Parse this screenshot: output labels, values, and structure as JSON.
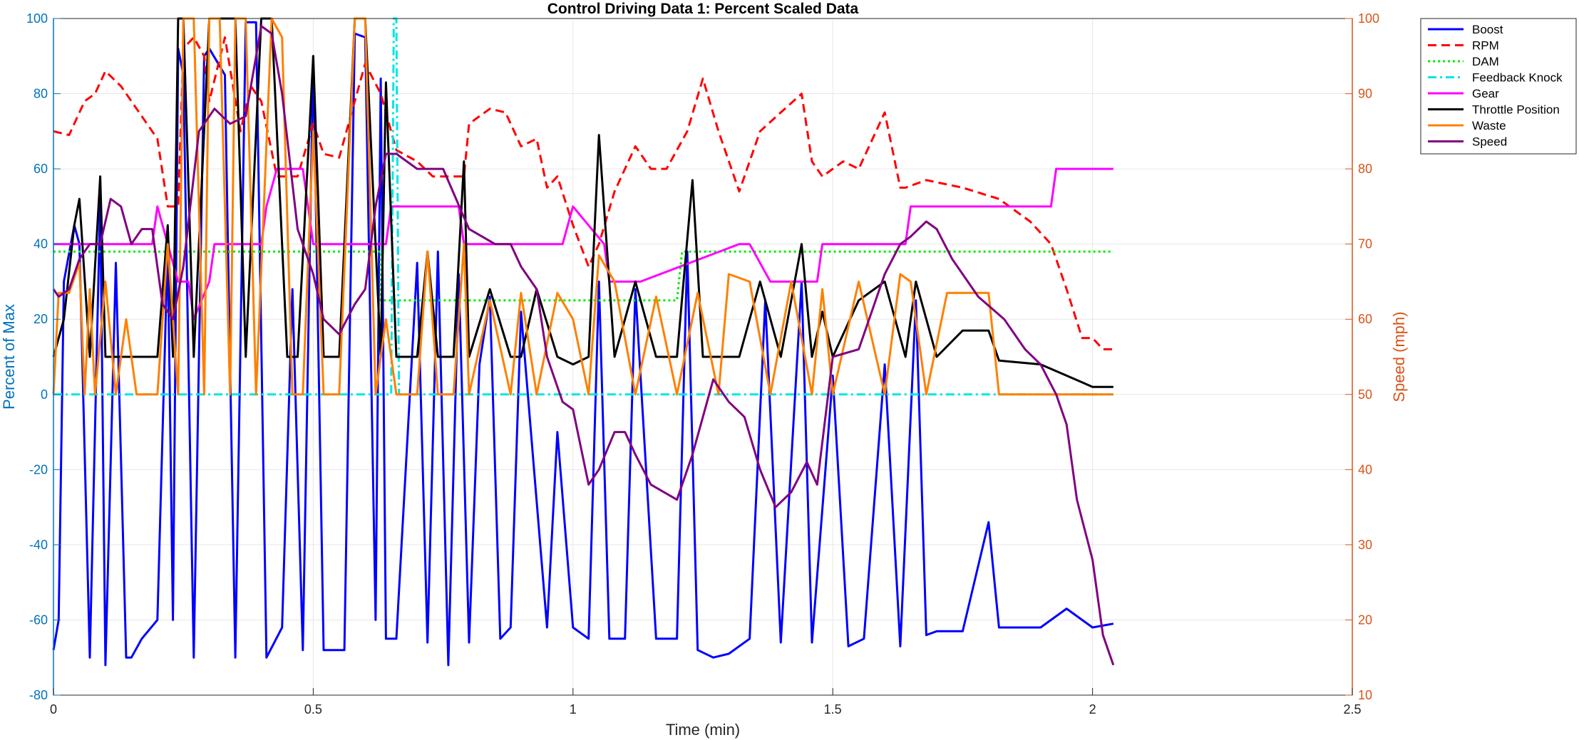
{
  "chart_data": {
    "type": "line",
    "title": "Control Driving Data 1: Percent Scaled Data",
    "xlabel": "Time (min)",
    "ylabel_left": "Percent of Max",
    "ylabel_right": "Speed (mph)",
    "xlim": [
      0,
      2.5
    ],
    "ylim_left": [
      -80,
      100
    ],
    "ylim_right": [
      10,
      100
    ],
    "x_ticks": [
      "0",
      "0.5",
      "1",
      "1.5",
      "2",
      "2.5"
    ],
    "y_ticks_left": [
      "-80",
      "-60",
      "-40",
      "-20",
      "0",
      "20",
      "40",
      "60",
      "80",
      "100"
    ],
    "y_ticks_right": [
      "10",
      "20",
      "30",
      "40",
      "50",
      "60",
      "70",
      "80",
      "90",
      "100"
    ],
    "grid": true,
    "legend_position": "outside-top-right",
    "series": [
      {
        "name": "Boost",
        "axis": "left",
        "color": "#0000FF",
        "style": "solid",
        "x": [
          0,
          0.01,
          0.02,
          0.04,
          0.05,
          0.07,
          0.09,
          0.1,
          0.12,
          0.14,
          0.15,
          0.17,
          0.2,
          0.22,
          0.23,
          0.24,
          0.25,
          0.27,
          0.29,
          0.3,
          0.33,
          0.35,
          0.37,
          0.39,
          0.41,
          0.44,
          0.46,
          0.48,
          0.5,
          0.52,
          0.56,
          0.58,
          0.6,
          0.62,
          0.63,
          0.64,
          0.66,
          0.7,
          0.72,
          0.74,
          0.76,
          0.78,
          0.8,
          0.82,
          0.84,
          0.86,
          0.88,
          0.9,
          0.95,
          0.97,
          1.0,
          1.03,
          1.05,
          1.07,
          1.1,
          1.12,
          1.16,
          1.2,
          1.22,
          1.24,
          1.27,
          1.3,
          1.34,
          1.37,
          1.4,
          1.44,
          1.46,
          1.5,
          1.53,
          1.56,
          1.6,
          1.63,
          1.66,
          1.68,
          1.7,
          1.75,
          1.8,
          1.82,
          1.85,
          1.9,
          1.95,
          2.0,
          2.04
        ],
        "y": [
          -68,
          -60,
          30,
          45,
          40,
          -70,
          52,
          -72,
          35,
          -70,
          -70,
          -65,
          -60,
          40,
          -60,
          92,
          85,
          -70,
          90,
          92,
          85,
          -70,
          99,
          99,
          -70,
          -62,
          28,
          -68,
          90,
          -68,
          -68,
          96,
          95,
          -60,
          84,
          -65,
          -65,
          35,
          -66,
          38,
          -72,
          32,
          -66,
          8,
          26,
          -65,
          -62,
          22,
          -62,
          -10,
          -62,
          -65,
          30,
          -65,
          -65,
          28,
          -65,
          -65,
          38,
          -68,
          -70,
          -69,
          -65,
          25,
          -66,
          30,
          -66,
          5,
          -67,
          -65,
          8,
          -67,
          25,
          -64,
          -63,
          -63,
          -34,
          -62,
          -62,
          -62,
          -57,
          -62,
          -61
        ]
      },
      {
        "name": "RPM",
        "axis": "left",
        "color": "#FF0000",
        "style": "dashed",
        "x": [
          0,
          0.03,
          0.06,
          0.08,
          0.1,
          0.13,
          0.15,
          0.2,
          0.22,
          0.24,
          0.25,
          0.27,
          0.29,
          0.3,
          0.33,
          0.36,
          0.38,
          0.4,
          0.43,
          0.47,
          0.5,
          0.52,
          0.55,
          0.58,
          0.6,
          0.63,
          0.66,
          0.7,
          0.73,
          0.76,
          0.79,
          0.8,
          0.84,
          0.87,
          0.9,
          0.93,
          0.95,
          0.97,
          1.0,
          1.03,
          1.05,
          1.08,
          1.12,
          1.15,
          1.18,
          1.22,
          1.25,
          1.28,
          1.32,
          1.36,
          1.4,
          1.44,
          1.46,
          1.48,
          1.52,
          1.55,
          1.6,
          1.63,
          1.64,
          1.68,
          1.75,
          1.82,
          1.88,
          1.92,
          1.95,
          1.98,
          2.0,
          2.02,
          2.04
        ],
        "y": [
          70,
          69,
          78,
          80,
          86,
          82,
          78,
          68,
          50,
          50,
          92,
          95,
          90,
          78,
          95,
          70,
          82,
          78,
          58,
          58,
          72,
          64,
          63,
          78,
          88,
          80,
          65,
          62,
          58,
          58,
          58,
          72,
          76,
          75,
          66,
          68,
          55,
          58,
          45,
          34,
          40,
          54,
          66,
          60,
          60,
          70,
          84,
          70,
          54,
          70,
          75,
          80,
          62,
          58,
          62,
          60,
          75,
          55,
          55,
          57,
          55,
          52,
          46,
          40,
          28,
          15,
          15,
          12,
          12
        ]
      },
      {
        "name": "DAM",
        "axis": "left",
        "color": "#00EE00",
        "style": "dotted",
        "x": [
          0,
          0.63,
          0.63,
          0.65,
          0.66,
          1.2,
          1.21,
          2.04
        ],
        "y": [
          38,
          38,
          25,
          25,
          25,
          25,
          38,
          38
        ]
      },
      {
        "name": "Feedback Knock",
        "axis": "left",
        "color": "#00E5E5",
        "style": "dashdot",
        "x": [
          0,
          0.65,
          0.655,
          0.66,
          0.665,
          2.04
        ],
        "y": [
          0,
          0,
          100,
          100,
          0,
          0
        ]
      },
      {
        "name": "Gear",
        "axis": "left",
        "color": "#FF00FF",
        "style": "solid",
        "x": [
          0,
          0.19,
          0.2,
          0.22,
          0.24,
          0.26,
          0.27,
          0.3,
          0.31,
          0.4,
          0.41,
          0.43,
          0.48,
          0.5,
          0.64,
          0.65,
          0.78,
          0.79,
          0.98,
          1.0,
          1.06,
          1.07,
          1.12,
          1.13,
          1.32,
          1.34,
          1.38,
          1.47,
          1.48,
          1.64,
          1.65,
          1.92,
          1.93,
          2.04
        ],
        "y": [
          40,
          40,
          50,
          40,
          30,
          30,
          20,
          30,
          40,
          40,
          50,
          60,
          60,
          40,
          40,
          50,
          50,
          40,
          40,
          50,
          40,
          30,
          30,
          30,
          40,
          40,
          30,
          30,
          40,
          40,
          50,
          50,
          60,
          60
        ]
      },
      {
        "name": "Throttle Position",
        "axis": "left",
        "color": "#000000",
        "style": "solid",
        "x": [
          0,
          0.02,
          0.04,
          0.05,
          0.07,
          0.09,
          0.1,
          0.14,
          0.2,
          0.22,
          0.23,
          0.24,
          0.25,
          0.27,
          0.3,
          0.35,
          0.37,
          0.4,
          0.42,
          0.45,
          0.47,
          0.5,
          0.52,
          0.55,
          0.58,
          0.6,
          0.63,
          0.64,
          0.66,
          0.7,
          0.72,
          0.74,
          0.77,
          0.79,
          0.8,
          0.84,
          0.88,
          0.9,
          0.93,
          0.97,
          1.0,
          1.03,
          1.05,
          1.08,
          1.12,
          1.16,
          1.2,
          1.23,
          1.25,
          1.28,
          1.32,
          1.36,
          1.4,
          1.44,
          1.46,
          1.48,
          1.5,
          1.55,
          1.6,
          1.64,
          1.66,
          1.7,
          1.75,
          1.8,
          1.82,
          1.9,
          1.95,
          2.0,
          2.04
        ],
        "y": [
          10,
          20,
          45,
          52,
          10,
          58,
          10,
          10,
          10,
          45,
          10,
          100,
          100,
          10,
          100,
          100,
          10,
          100,
          100,
          10,
          10,
          90,
          10,
          10,
          100,
          100,
          10,
          83,
          10,
          10,
          38,
          10,
          10,
          62,
          10,
          28,
          10,
          10,
          28,
          10,
          8,
          10,
          69,
          10,
          30,
          10,
          10,
          57,
          10,
          10,
          10,
          30,
          10,
          40,
          10,
          22,
          10,
          25,
          30,
          10,
          30,
          10,
          17,
          17,
          9,
          8,
          5,
          2,
          2
        ]
      },
      {
        "name": "Waste",
        "axis": "left",
        "color": "#FF8000",
        "style": "solid",
        "x": [
          0,
          0.01,
          0.03,
          0.05,
          0.06,
          0.07,
          0.08,
          0.1,
          0.12,
          0.14,
          0.16,
          0.2,
          0.22,
          0.24,
          0.25,
          0.27,
          0.29,
          0.3,
          0.32,
          0.34,
          0.35,
          0.37,
          0.39,
          0.42,
          0.44,
          0.46,
          0.48,
          0.5,
          0.52,
          0.55,
          0.58,
          0.6,
          0.62,
          0.64,
          0.66,
          0.7,
          0.72,
          0.74,
          0.77,
          0.79,
          0.8,
          0.84,
          0.88,
          0.9,
          0.93,
          0.97,
          1.0,
          1.03,
          1.05,
          1.08,
          1.12,
          1.16,
          1.2,
          1.24,
          1.28,
          1.3,
          1.34,
          1.38,
          1.42,
          1.46,
          1.48,
          1.5,
          1.55,
          1.6,
          1.63,
          1.65,
          1.68,
          1.72,
          1.8,
          1.82,
          1.9,
          2.0,
          2.04
        ],
        "y": [
          0,
          27,
          27,
          35,
          0,
          28,
          0,
          30,
          0,
          20,
          0,
          0,
          40,
          0,
          100,
          100,
          0,
          100,
          100,
          0,
          100,
          100,
          0,
          100,
          95,
          0,
          0,
          70,
          0,
          0,
          100,
          100,
          0,
          20,
          0,
          0,
          38,
          0,
          0,
          40,
          0,
          25,
          0,
          27,
          0,
          27,
          20,
          0,
          37,
          30,
          0,
          26,
          0,
          27,
          0,
          32,
          30,
          0,
          30,
          0,
          28,
          0,
          30,
          0,
          32,
          30,
          0,
          27,
          27,
          0,
          0,
          0,
          0
        ]
      },
      {
        "name": "Speed",
        "axis": "right",
        "color": "#800080",
        "style": "solid",
        "x": [
          0,
          0.01,
          0.03,
          0.05,
          0.07,
          0.09,
          0.11,
          0.13,
          0.15,
          0.17,
          0.19,
          0.21,
          0.23,
          0.25,
          0.28,
          0.31,
          0.34,
          0.37,
          0.4,
          0.42,
          0.44,
          0.47,
          0.5,
          0.52,
          0.55,
          0.58,
          0.6,
          0.62,
          0.64,
          0.66,
          0.7,
          0.75,
          0.8,
          0.85,
          0.88,
          0.9,
          0.93,
          0.95,
          0.98,
          1.0,
          1.03,
          1.05,
          1.08,
          1.1,
          1.12,
          1.15,
          1.2,
          1.23,
          1.27,
          1.3,
          1.33,
          1.36,
          1.39,
          1.42,
          1.45,
          1.47,
          1.5,
          1.55,
          1.6,
          1.63,
          1.65,
          1.68,
          1.7,
          1.73,
          1.78,
          1.83,
          1.87,
          1.9,
          1.93,
          1.95,
          1.97,
          2.0,
          2.02,
          2.04
        ],
        "y": [
          64,
          63,
          64,
          68,
          70,
          70,
          76,
          75,
          70,
          72,
          72,
          62,
          60,
          67,
          85,
          88,
          86,
          87,
          99,
          98,
          90,
          72,
          66,
          60,
          58,
          62,
          64,
          75,
          82,
          82,
          80,
          80,
          72,
          70,
          70,
          67,
          64,
          55,
          49,
          48,
          38,
          40,
          45,
          45,
          42,
          38,
          36,
          42,
          52,
          49,
          47,
          40,
          35,
          37,
          41,
          38,
          55,
          56,
          66,
          70,
          71,
          73,
          72,
          68,
          63,
          60,
          56,
          54,
          50,
          46,
          36,
          28,
          18,
          14
        ]
      }
    ]
  }
}
